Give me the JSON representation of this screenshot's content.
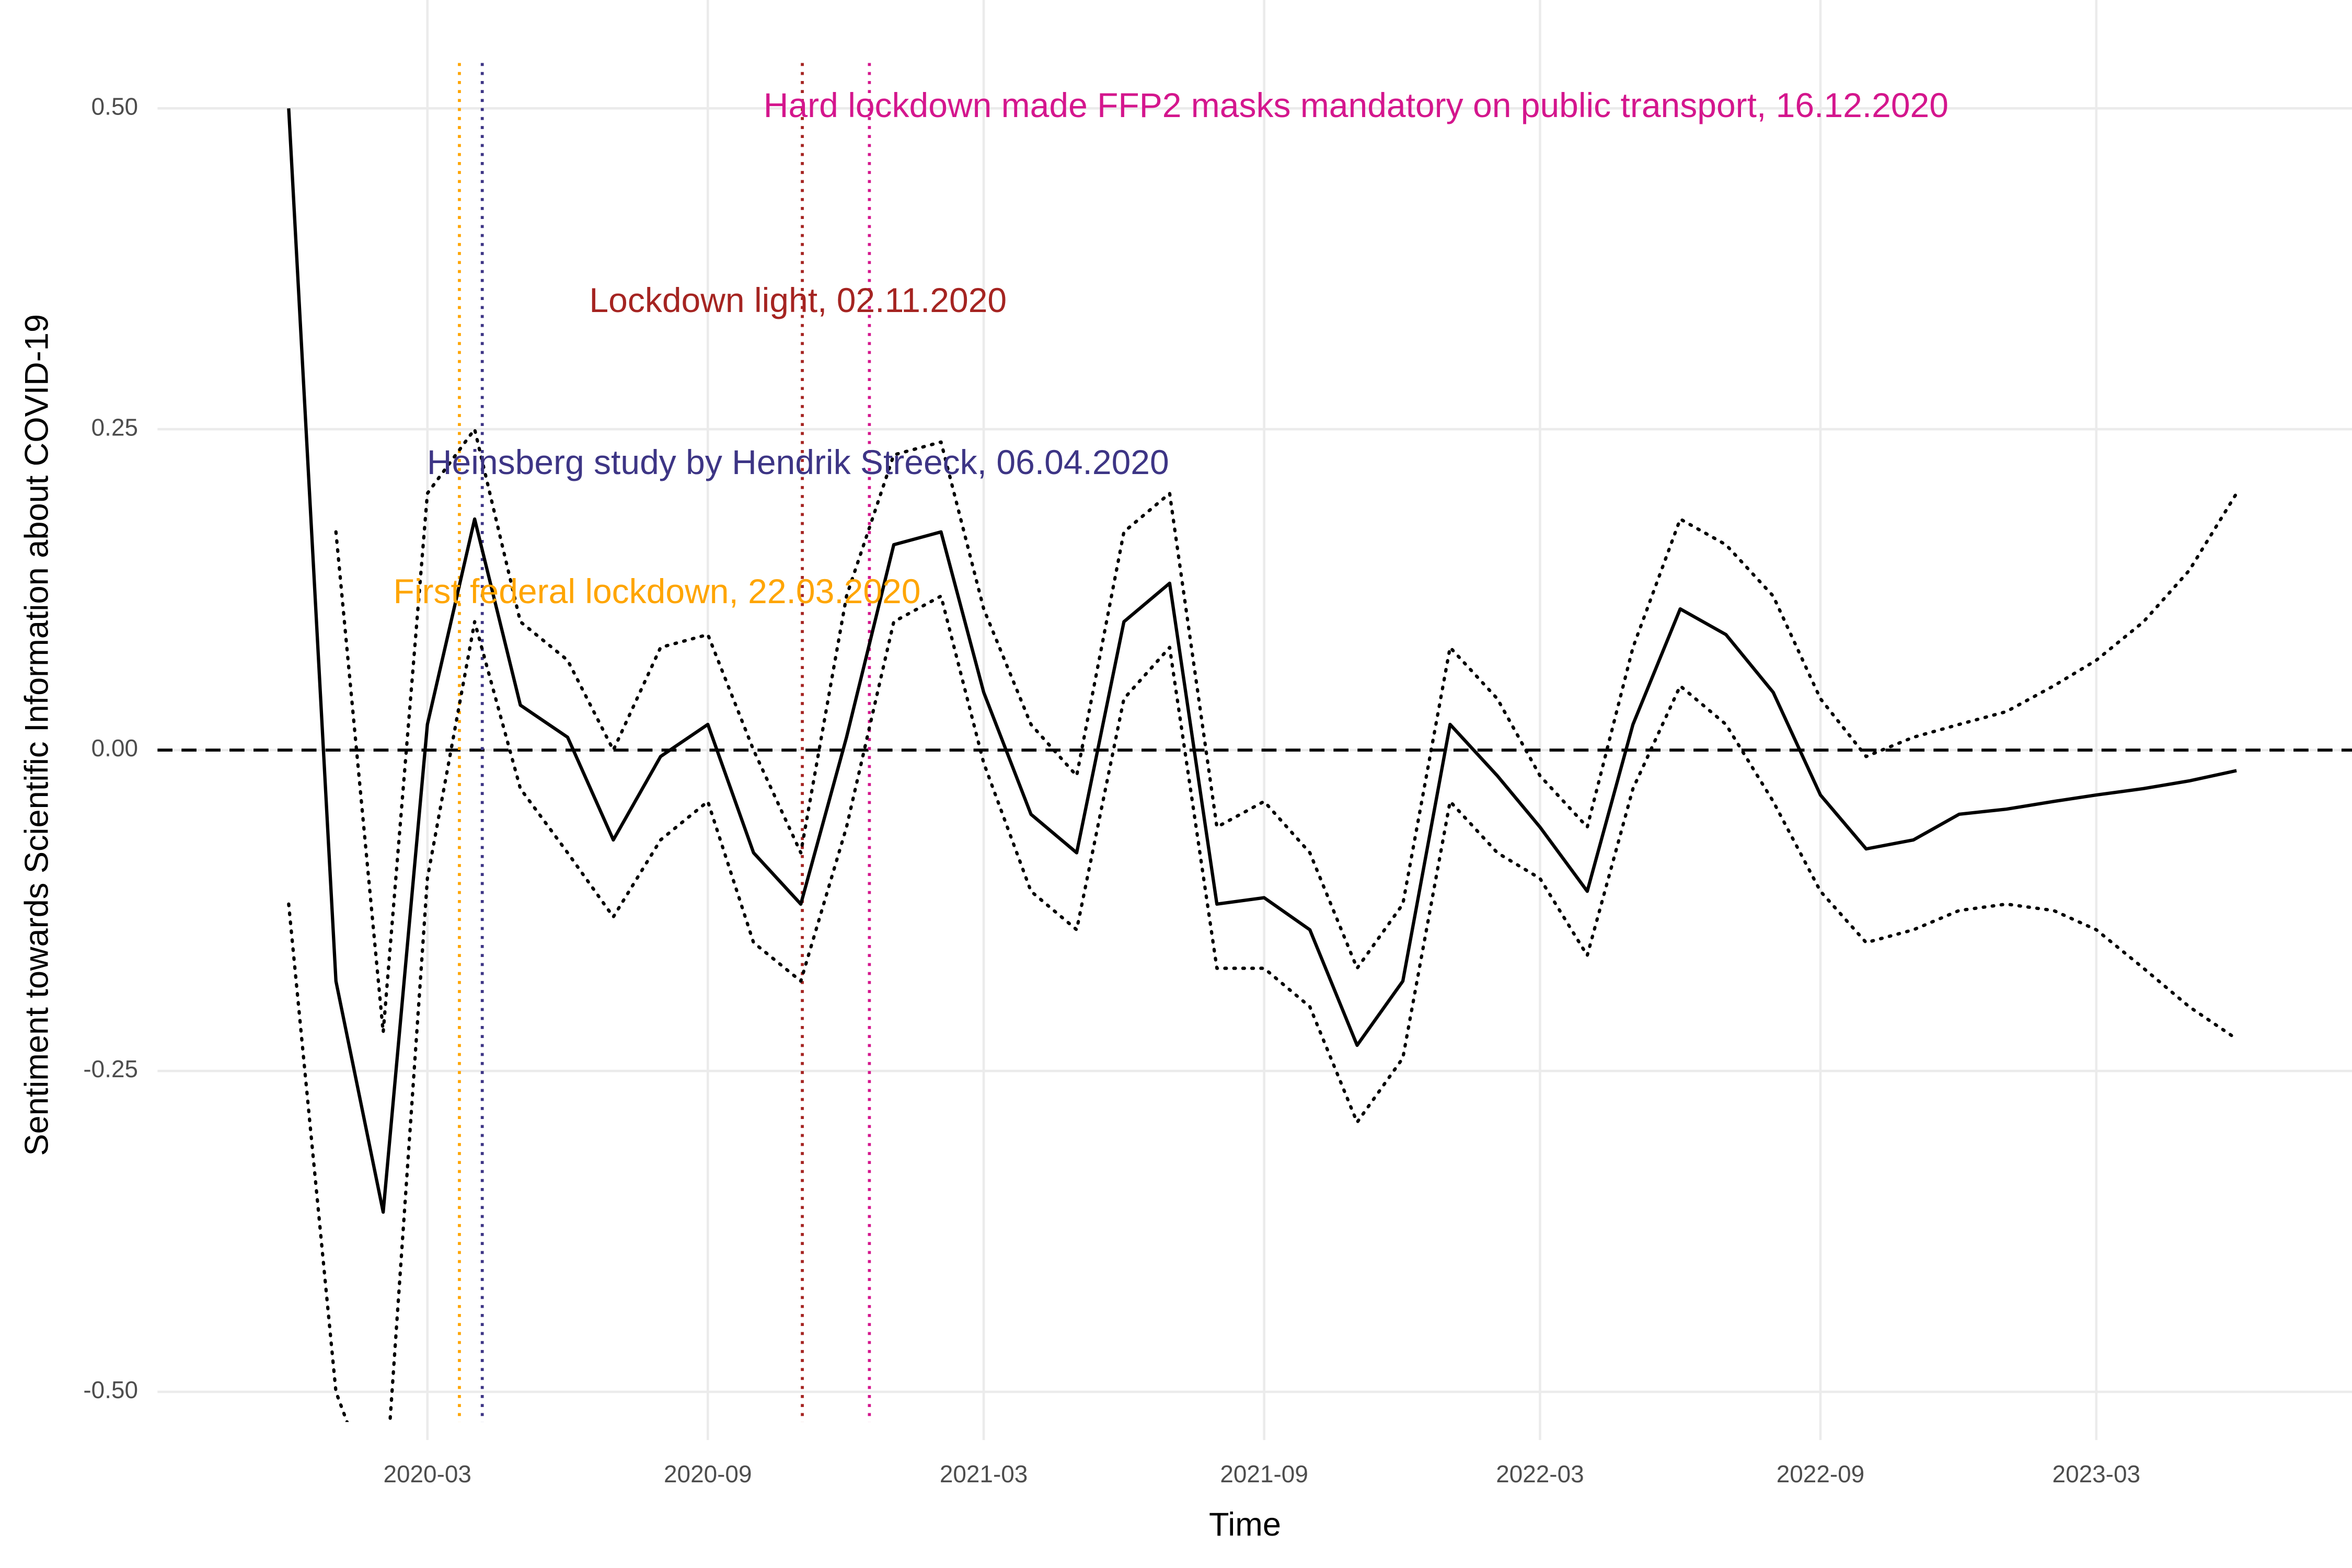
{
  "chart_data": {
    "type": "line",
    "x_label": "Time",
    "y_label": "Sentiment towards Scientific Information about COVID-19",
    "xlim": [
      "2019-09",
      "2023-08"
    ],
    "xticks": [
      "2020-03",
      "2020-09",
      "2021-03",
      "2021-09",
      "2022-03",
      "2022-09",
      "2023-03"
    ],
    "ylim": [
      -0.52,
      0.54
    ],
    "yticks": [
      {
        "value": -0.5,
        "label": "-0.50"
      },
      {
        "value": -0.25,
        "label": "-0.25"
      },
      {
        "value": 0,
        "label": "0.00"
      },
      {
        "value": 0.25,
        "label": "0.25"
      },
      {
        "value": 0.5,
        "label": "0.50"
      }
    ],
    "grid": true,
    "reference_line": 0,
    "x": [
      "2019-12",
      "2020-01",
      "2020-02",
      "2020-03",
      "2020-04",
      "2020-05",
      "2020-06",
      "2020-07",
      "2020-08",
      "2020-09",
      "2020-10",
      "2020-11",
      "2020-12",
      "2021-01",
      "2021-02",
      "2021-03",
      "2021-04",
      "2021-05",
      "2021-06",
      "2021-07",
      "2021-08",
      "2021-09",
      "2021-10",
      "2021-11",
      "2021-12",
      "2022-01",
      "2022-02",
      "2022-03",
      "2022-04",
      "2022-05",
      "2022-06",
      "2022-07",
      "2022-08",
      "2022-09",
      "2022-10",
      "2022-11",
      "2022-12",
      "2023-01",
      "2023-02",
      "2023-03",
      "2023-04",
      "2023-05",
      "2023-06"
    ],
    "series": [
      {
        "color": "#000000",
        "style": "solid",
        "values": [
          0.5,
          -0.18,
          -0.36,
          0.02,
          0.18,
          0.035,
          0.01,
          -0.07,
          -0.005,
          0.02,
          -0.08,
          -0.12,
          0.01,
          0.16,
          0.17,
          0.045,
          -0.05,
          -0.08,
          0.1,
          0.13,
          -0.12,
          -0.115,
          -0.14,
          -0.23,
          -0.18,
          0.02,
          -0.02,
          -0.06,
          -0.11,
          0.02,
          0.11,
          0.09,
          0.045,
          -0.035,
          -0.077,
          -0.07,
          -0.05,
          -0.046,
          -0.04,
          -0.035,
          -0.03,
          -0.024,
          -0.016
        ]
      },
      {
        "color": "#000000",
        "style": "dotted",
        "values": [
          null,
          0.17,
          -0.22,
          0.2,
          0.25,
          0.1,
          0.07,
          0.0,
          0.08,
          0.09,
          0.0,
          -0.08,
          0.12,
          0.23,
          0.24,
          0.11,
          0.02,
          -0.02,
          0.17,
          0.2,
          -0.06,
          -0.04,
          -0.08,
          -0.17,
          -0.12,
          0.08,
          0.04,
          -0.02,
          -0.06,
          0.08,
          0.18,
          0.16,
          0.12,
          0.04,
          -0.005,
          0.01,
          0.02,
          0.03,
          0.05,
          0.07,
          0.1,
          0.14,
          0.2
        ]
      },
      {
        "color": "#000000",
        "style": "dotted",
        "values": [
          -0.12,
          -0.5,
          -0.6,
          -0.1,
          0.1,
          -0.03,
          -0.08,
          -0.13,
          -0.07,
          -0.04,
          -0.15,
          -0.18,
          -0.06,
          0.1,
          0.12,
          -0.01,
          -0.11,
          -0.14,
          0.04,
          0.08,
          -0.17,
          -0.17,
          -0.2,
          -0.29,
          -0.24,
          -0.04,
          -0.08,
          -0.1,
          -0.16,
          -0.03,
          0.05,
          0.02,
          -0.04,
          -0.11,
          -0.15,
          -0.14,
          -0.125,
          -0.12,
          -0.125,
          -0.14,
          -0.17,
          -0.2,
          -0.225
        ]
      }
    ],
    "events": [
      {
        "label": "First federal lockdown, 22.03.2020",
        "date": "2020-03-22",
        "color": "#ffa500"
      },
      {
        "label": "Heinsberg study by Hendrik Streeck, 06.04.2020",
        "date": "2020-04-06",
        "color": "#3d3585"
      },
      {
        "label": "Lockdown light, 02.11.2020",
        "date": "2020-11-02",
        "color": "#a52421"
      },
      {
        "label": "Hard lockdown made FFP2 masks mandatory on public transport, 16.12.2020",
        "date": "2020-12-16",
        "color": "#d4168d"
      }
    ]
  }
}
